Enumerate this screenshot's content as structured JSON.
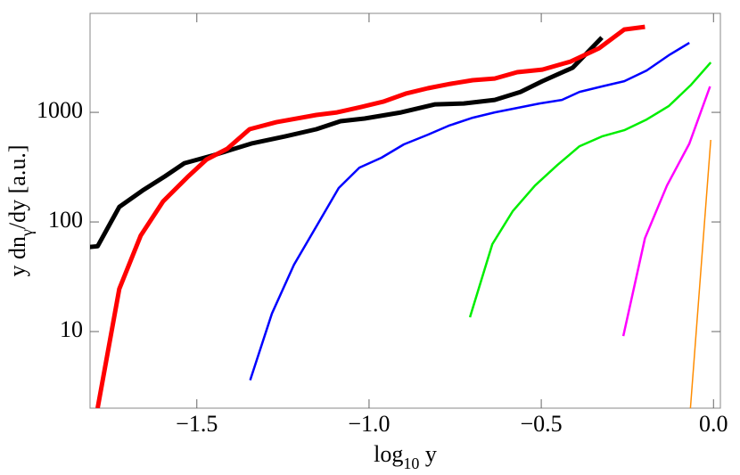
{
  "chart_data": {
    "type": "line",
    "xlabel": [
      "log",
      "10",
      " y"
    ],
    "ylabel": [
      "y dn",
      "γ",
      "/dy [a.u.]"
    ],
    "log_y": true,
    "xlim": [
      -1.81,
      0.02
    ],
    "ylim": [
      2,
      8000
    ],
    "xticks": [
      {
        "value": -1.5,
        "label": "−1.5"
      },
      {
        "value": -1.0,
        "label": "−1.0"
      },
      {
        "value": -0.5,
        "label": "−0.5"
      },
      {
        "value": 0,
        "label": "0.0"
      }
    ],
    "yticks": [
      10,
      100,
      1000
    ],
    "series": [
      {
        "color": "#000000",
        "line_width": 5,
        "x": [
          -1.811,
          -1.788,
          -1.725,
          -1.658,
          -1.593,
          -1.536,
          -1.451,
          -1.342,
          -1.244,
          -1.153,
          -1.083,
          -1.013,
          -0.907,
          -0.808,
          -0.725,
          -0.635,
          -0.56,
          -0.497,
          -0.409,
          -0.324
        ],
        "values": [
          59,
          60,
          137,
          193,
          260,
          344,
          407,
          519,
          603,
          701,
          830,
          878,
          1000,
          1183,
          1206,
          1300,
          1538,
          1926,
          2552,
          4820
        ]
      },
      {
        "color": "#ff0000",
        "line_width": 5,
        "x": [
          -1.788,
          -1.725,
          -1.663,
          -1.598,
          -1.528,
          -1.472,
          -1.412,
          -1.347,
          -1.269,
          -1.153,
          -1.093,
          -1.023,
          -0.959,
          -0.894,
          -0.829,
          -0.764,
          -0.699,
          -0.635,
          -0.57,
          -0.497,
          -0.415,
          -0.332,
          -0.259,
          -0.199
        ],
        "values": [
          2,
          24.5,
          75,
          154,
          255,
          371,
          465,
          701,
          814,
          946,
          1000,
          1119,
          1252,
          1482,
          1660,
          1820,
          1963,
          2037,
          2323,
          2457,
          2906,
          3846,
          5700,
          6030
        ]
      },
      {
        "color": "#0000ff",
        "line_width": 2.5,
        "x": [
          -1.345,
          -1.282,
          -1.218,
          -1.153,
          -1.088,
          -1.028,
          -0.964,
          -0.899,
          -0.829,
          -0.769,
          -0.699,
          -0.635,
          -0.57,
          -0.505,
          -0.44,
          -0.389,
          -0.324,
          -0.259,
          -0.194,
          -0.13,
          -0.07
        ],
        "values": [
          3.6,
          14.6,
          40.7,
          91,
          204,
          313,
          385,
          510,
          626,
          755,
          894,
          1000,
          1098,
          1206,
          1300,
          1538,
          1722,
          1926,
          2411,
          3311,
          4305
        ]
      },
      {
        "color": "#00ee00",
        "line_width": 2.5,
        "x": [
          -0.707,
          -0.642,
          -0.583,
          -0.518,
          -0.453,
          -0.389,
          -0.324,
          -0.259,
          -0.194,
          -0.13,
          -0.065,
          -0.008
        ],
        "values": [
          13.5,
          62.7,
          125,
          215,
          331,
          491,
          603,
          687,
          861,
          1140,
          1787,
          2852
        ]
      },
      {
        "color": "#ff00ff",
        "line_width": 2.5,
        "x": [
          -0.262,
          -0.199,
          -0.135,
          -0.07,
          -0.01
        ],
        "values": [
          9.1,
          71,
          215,
          519,
          1722
        ]
      },
      {
        "color": "#ff8c00",
        "line_width": 1.5,
        "x": [
          -0.067,
          -0.008
        ],
        "values": [
          2,
          560
        ]
      }
    ]
  }
}
